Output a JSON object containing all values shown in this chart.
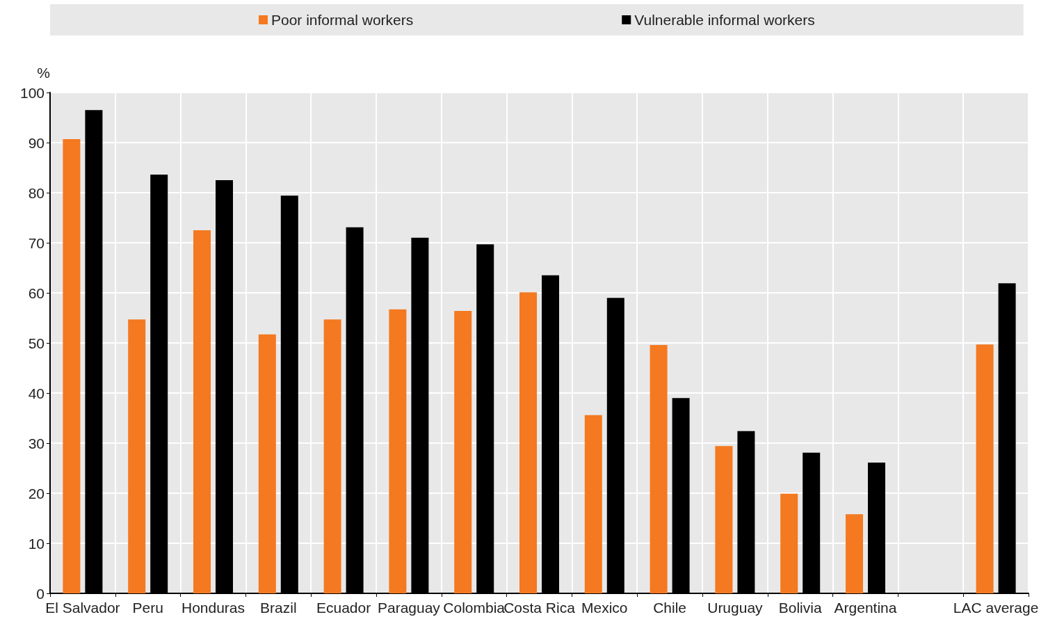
{
  "chart_data": {
    "type": "bar",
    "ylabel": "%",
    "categories": [
      "El Salvador",
      "Peru",
      "Honduras",
      "Brazil",
      "Ecuador",
      "Paraguay",
      "Colombia",
      "Costa Rica",
      "Mexico",
      "Chile",
      "Uruguay",
      "Bolivia",
      "Argentina",
      null,
      "LAC average"
    ],
    "series": [
      {
        "name": "Poor informal workers",
        "color": "#f47920",
        "values": [
          90.7,
          54.7,
          72.5,
          51.7,
          54.7,
          56.7,
          56.4,
          60.1,
          35.6,
          49.6,
          29.4,
          19.9,
          15.8,
          null,
          49.7
        ]
      },
      {
        "name": "Vulnerable informal workers",
        "color": "#000000",
        "values": [
          96.5,
          83.6,
          82.5,
          79.4,
          73.1,
          71.0,
          69.7,
          63.5,
          59.0,
          39.0,
          32.4,
          28.1,
          26.1,
          null,
          61.9
        ]
      }
    ],
    "ylim": [
      0,
      100
    ],
    "yticks": [
      0,
      10,
      20,
      30,
      40,
      50,
      60,
      70,
      80,
      90,
      100
    ],
    "grid": true,
    "legend": "top"
  }
}
